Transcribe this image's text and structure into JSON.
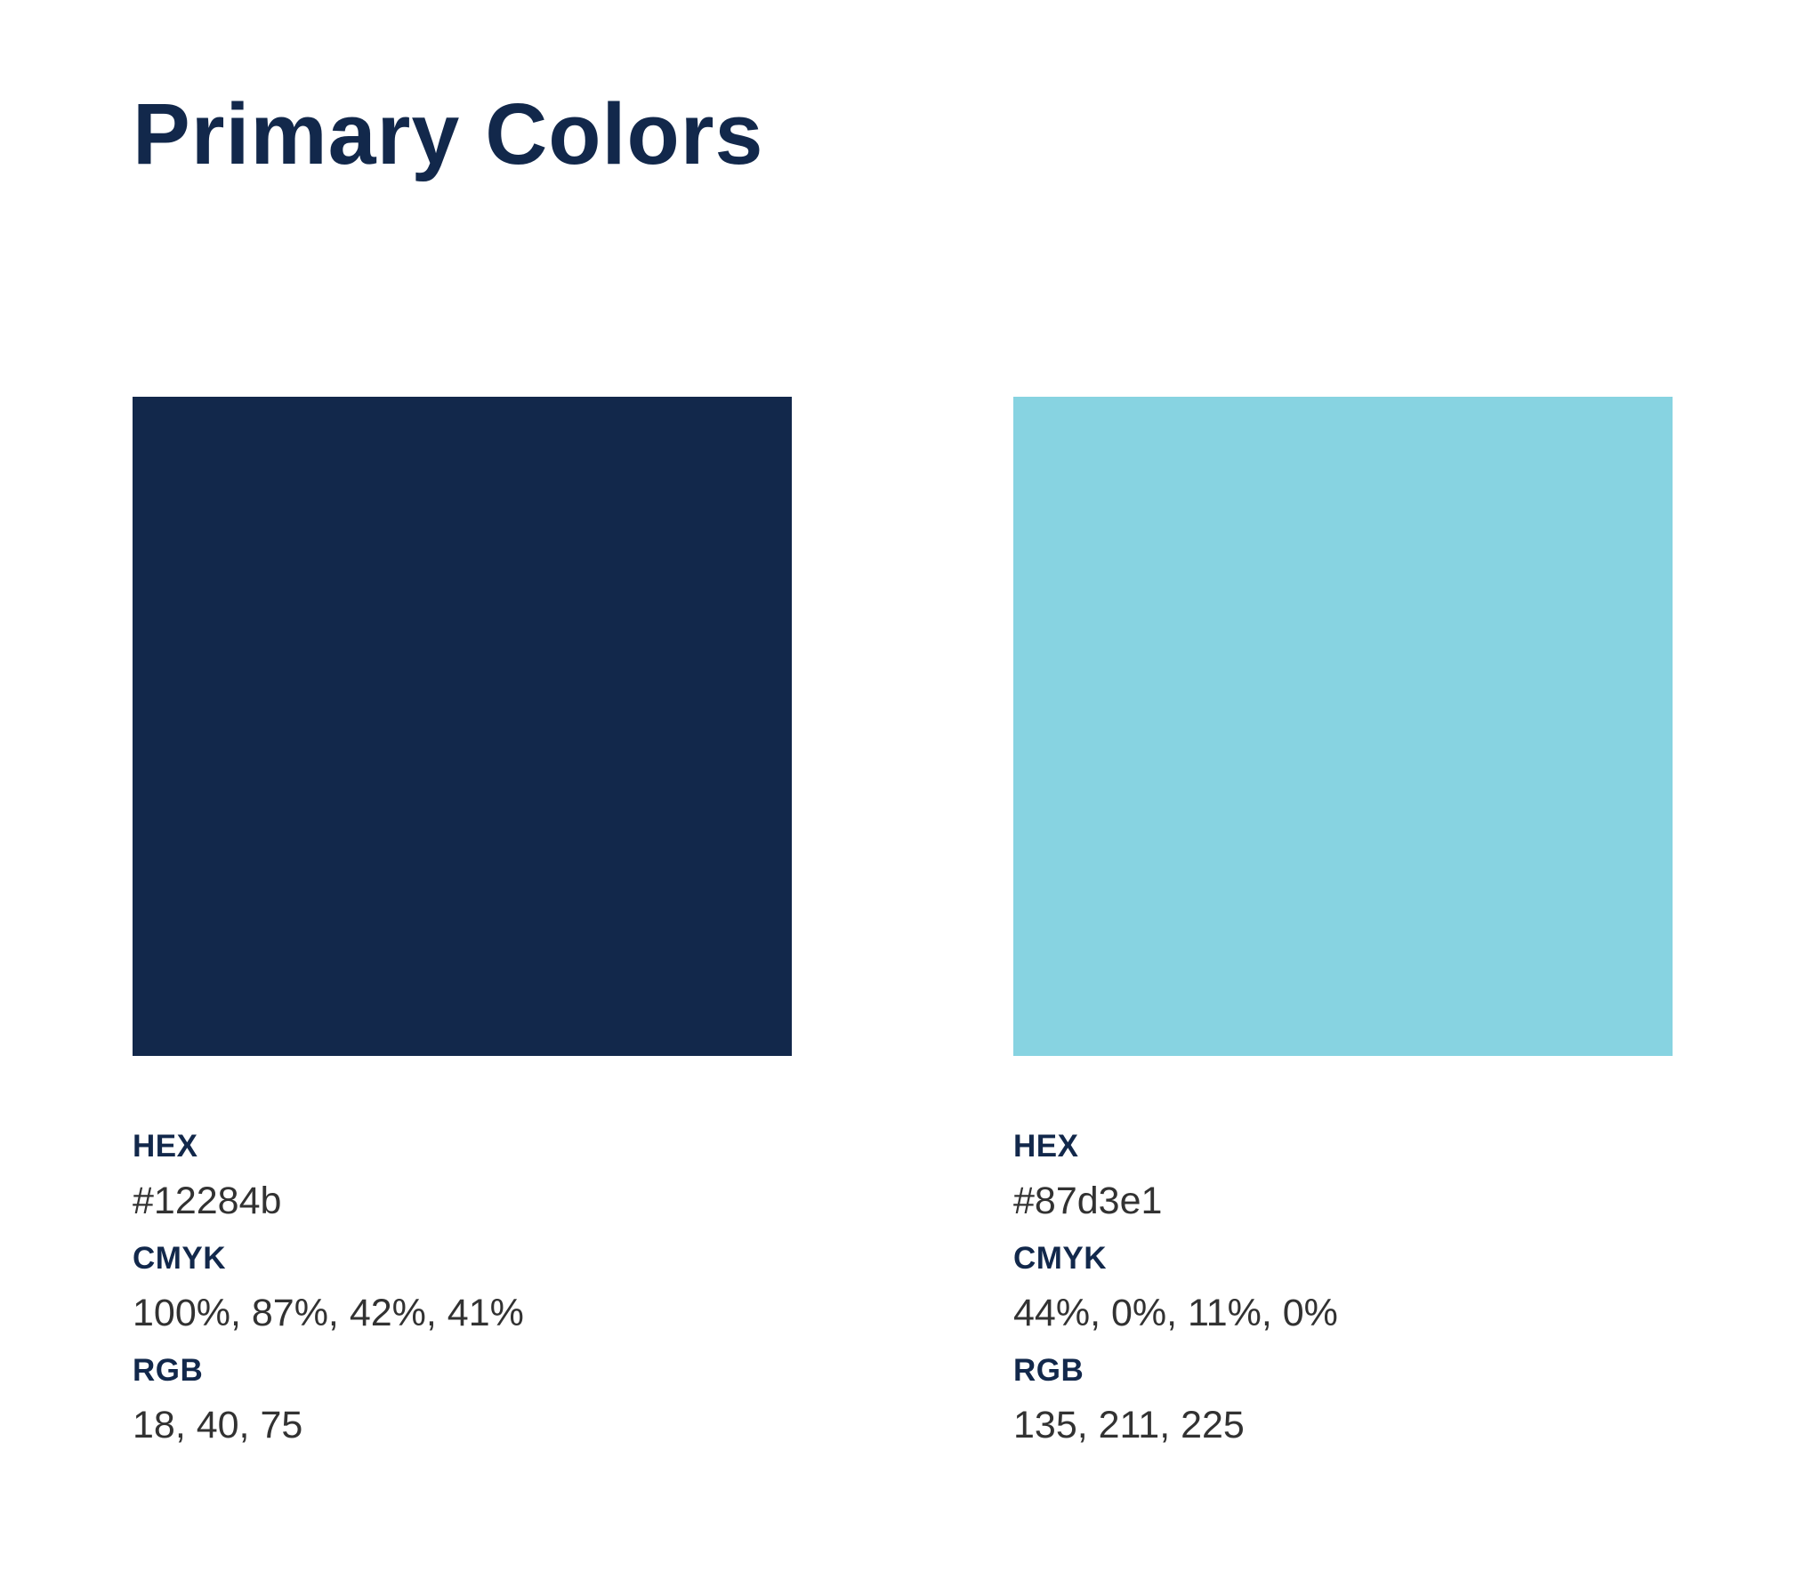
{
  "page": {
    "title": "Primary Colors",
    "background": "#ffffff"
  },
  "colors": [
    {
      "name": "navy",
      "swatch_hex": "#12284b",
      "hex_label": "HEX",
      "hex_value": "#12284b",
      "cmyk_label": "CMYK",
      "cmyk_value": "100%, 87%, 42%, 41%",
      "rgb_label": "RGB",
      "rgb_value": "18, 40, 75"
    },
    {
      "name": "light-blue",
      "swatch_hex": "#87d3e1",
      "hex_label": "HEX",
      "hex_value": "#87d3e1",
      "cmyk_label": "CMYK",
      "cmyk_value": "44%, 0%, 11%, 0%",
      "rgb_label": "RGB",
      "rgb_value": "135, 211, 225"
    }
  ],
  "text_colors": {
    "heading_navy": "#12284b",
    "value_gray": "#323232"
  }
}
